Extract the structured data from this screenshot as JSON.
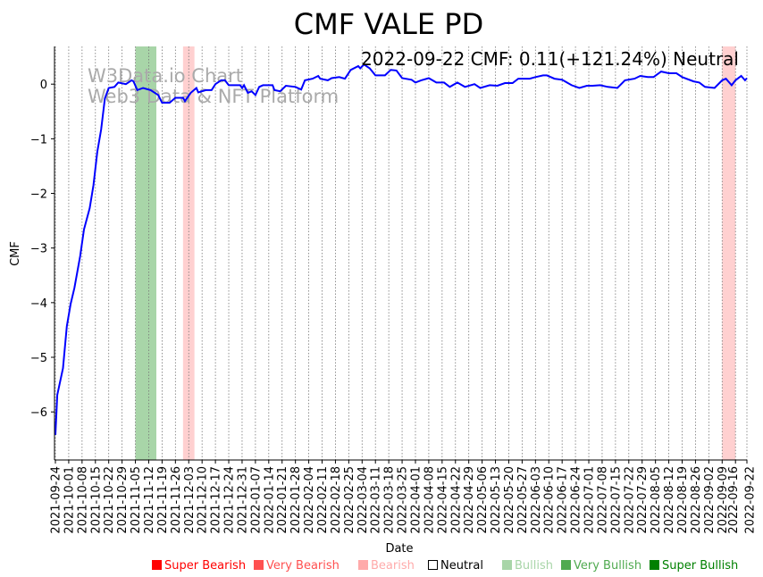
{
  "chart_data": {
    "type": "line",
    "title": "CMF VALE PD",
    "annotation": "2022-09-22 CMF: 0.11(+121.24%) Neutral",
    "watermark": [
      "W3Data.io Chart",
      "Web3 Data & NFT Platform"
    ],
    "xlabel": "Date",
    "ylabel": "CMF",
    "x_unit": "days since 2021-09-24",
    "xlim": [
      0,
      363
    ],
    "ylim": [
      -6.88,
      0.69
    ],
    "yticks": [
      0,
      -1,
      -2,
      -3,
      -4,
      -5,
      -6
    ],
    "xticks": [
      {
        "day": 0,
        "label": "2021-09-24"
      },
      {
        "day": 7,
        "label": "2021-10-01"
      },
      {
        "day": 14,
        "label": "2021-10-08"
      },
      {
        "day": 21,
        "label": "2021-10-15"
      },
      {
        "day": 28,
        "label": "2021-10-22"
      },
      {
        "day": 35,
        "label": "2021-10-29"
      },
      {
        "day": 42,
        "label": "2021-11-05"
      },
      {
        "day": 49,
        "label": "2021-11-12"
      },
      {
        "day": 56,
        "label": "2021-11-19"
      },
      {
        "day": 63,
        "label": "2021-11-26"
      },
      {
        "day": 70,
        "label": "2021-12-03"
      },
      {
        "day": 77,
        "label": "2021-12-10"
      },
      {
        "day": 84,
        "label": "2021-12-17"
      },
      {
        "day": 91,
        "label": "2021-12-24"
      },
      {
        "day": 98,
        "label": "2021-12-31"
      },
      {
        "day": 105,
        "label": "2022-01-07"
      },
      {
        "day": 112,
        "label": "2022-01-14"
      },
      {
        "day": 119,
        "label": "2022-01-21"
      },
      {
        "day": 126,
        "label": "2022-01-28"
      },
      {
        "day": 133,
        "label": "2022-02-04"
      },
      {
        "day": 140,
        "label": "2022-02-11"
      },
      {
        "day": 147,
        "label": "2022-02-18"
      },
      {
        "day": 154,
        "label": "2022-02-25"
      },
      {
        "day": 161,
        "label": "2022-03-04"
      },
      {
        "day": 168,
        "label": "2022-03-11"
      },
      {
        "day": 175,
        "label": "2022-03-18"
      },
      {
        "day": 182,
        "label": "2022-03-25"
      },
      {
        "day": 189,
        "label": "2022-04-01"
      },
      {
        "day": 196,
        "label": "2022-04-08"
      },
      {
        "day": 203,
        "label": "2022-04-15"
      },
      {
        "day": 210,
        "label": "2022-04-22"
      },
      {
        "day": 217,
        "label": "2022-04-29"
      },
      {
        "day": 224,
        "label": "2022-05-06"
      },
      {
        "day": 231,
        "label": "2022-05-13"
      },
      {
        "day": 238,
        "label": "2022-05-20"
      },
      {
        "day": 245,
        "label": "2022-05-27"
      },
      {
        "day": 252,
        "label": "2022-06-03"
      },
      {
        "day": 259,
        "label": "2022-06-10"
      },
      {
        "day": 266,
        "label": "2022-06-17"
      },
      {
        "day": 273,
        "label": "2022-06-24"
      },
      {
        "day": 280,
        "label": "2022-07-01"
      },
      {
        "day": 287,
        "label": "2022-07-08"
      },
      {
        "day": 294,
        "label": "2022-07-15"
      },
      {
        "day": 301,
        "label": "2022-07-22"
      },
      {
        "day": 308,
        "label": "2022-07-29"
      },
      {
        "day": 315,
        "label": "2022-08-05"
      },
      {
        "day": 322,
        "label": "2022-08-12"
      },
      {
        "day": 329,
        "label": "2022-08-19"
      },
      {
        "day": 336,
        "label": "2022-08-26"
      },
      {
        "day": 343,
        "label": "2022-09-02"
      },
      {
        "day": 350,
        "label": "2022-09-09"
      },
      {
        "day": 357,
        "label": "2022-09-16"
      },
      {
        "day": 363,
        "label": "2022-09-22"
      }
    ],
    "grid": "vertical dotted",
    "regions": [
      {
        "start": 42,
        "end": 53,
        "category": "Bullish",
        "color": "#a8d5a8"
      },
      {
        "start": 67,
        "end": 73,
        "category": "Bearish",
        "color": "#ffd0d0"
      },
      {
        "start": 350,
        "end": 357,
        "category": "Bearish",
        "color": "#ffd0d0"
      }
    ],
    "series": [
      {
        "name": "CMF",
        "color": "#0000ff",
        "points": [
          [
            0,
            -6.42
          ],
          [
            1,
            -5.69
          ],
          [
            4,
            -5.2
          ],
          [
            6,
            -4.43
          ],
          [
            8,
            -4.02
          ],
          [
            10,
            -3.73
          ],
          [
            13,
            -3.15
          ],
          [
            15,
            -2.66
          ],
          [
            18,
            -2.27
          ],
          [
            20,
            -1.85
          ],
          [
            22,
            -1.24
          ],
          [
            24,
            -0.83
          ],
          [
            26,
            -0.26
          ],
          [
            28,
            -0.07
          ],
          [
            31,
            -0.05
          ],
          [
            33,
            0.03
          ],
          [
            37,
            0.0
          ],
          [
            40,
            0.07
          ],
          [
            41,
            0.05
          ],
          [
            43,
            -0.11
          ],
          [
            46,
            -0.07
          ],
          [
            50,
            -0.11
          ],
          [
            54,
            -0.2
          ],
          [
            56,
            -0.34
          ],
          [
            60,
            -0.34
          ],
          [
            63,
            -0.25
          ],
          [
            67,
            -0.25
          ],
          [
            68,
            -0.31
          ],
          [
            71,
            -0.16
          ],
          [
            74,
            -0.07
          ],
          [
            75,
            -0.15
          ],
          [
            79,
            -0.11
          ],
          [
            82,
            -0.11
          ],
          [
            84,
            0.0
          ],
          [
            87,
            0.07
          ],
          [
            89,
            0.07
          ],
          [
            91,
            -0.02
          ],
          [
            97,
            -0.02
          ],
          [
            98,
            -0.07
          ],
          [
            99,
            -0.02
          ],
          [
            101,
            -0.16
          ],
          [
            103,
            -0.13
          ],
          [
            105,
            -0.2
          ],
          [
            107,
            -0.05
          ],
          [
            109,
            -0.02
          ],
          [
            114,
            -0.02
          ],
          [
            115,
            -0.11
          ],
          [
            118,
            -0.13
          ],
          [
            121,
            -0.03
          ],
          [
            126,
            -0.05
          ],
          [
            129,
            -0.1
          ],
          [
            131,
            0.07
          ],
          [
            135,
            0.1
          ],
          [
            138,
            0.15
          ],
          [
            139,
            0.1
          ],
          [
            143,
            0.07
          ],
          [
            145,
            0.11
          ],
          [
            149,
            0.13
          ],
          [
            152,
            0.1
          ],
          [
            155,
            0.26
          ],
          [
            159,
            0.33
          ],
          [
            160,
            0.29
          ],
          [
            162,
            0.36
          ],
          [
            165,
            0.29
          ],
          [
            168,
            0.16
          ],
          [
            173,
            0.16
          ],
          [
            176,
            0.26
          ],
          [
            179,
            0.25
          ],
          [
            182,
            0.11
          ],
          [
            187,
            0.08
          ],
          [
            189,
            0.03
          ],
          [
            192,
            0.07
          ],
          [
            196,
            0.11
          ],
          [
            200,
            0.03
          ],
          [
            204,
            0.03
          ],
          [
            207,
            -0.05
          ],
          [
            211,
            0.03
          ],
          [
            215,
            -0.05
          ],
          [
            220,
            0.0
          ],
          [
            223,
            -0.07
          ],
          [
            228,
            -0.02
          ],
          [
            232,
            -0.03
          ],
          [
            236,
            0.02
          ],
          [
            240,
            0.02
          ],
          [
            243,
            0.1
          ],
          [
            249,
            0.1
          ],
          [
            252,
            0.13
          ],
          [
            256,
            0.16
          ],
          [
            258,
            0.16
          ],
          [
            262,
            0.1
          ],
          [
            266,
            0.08
          ],
          [
            271,
            -0.02
          ],
          [
            275,
            -0.07
          ],
          [
            279,
            -0.03
          ],
          [
            282,
            -0.03
          ],
          [
            286,
            -0.02
          ],
          [
            290,
            -0.05
          ],
          [
            295,
            -0.07
          ],
          [
            299,
            0.07
          ],
          [
            304,
            0.1
          ],
          [
            307,
            0.15
          ],
          [
            311,
            0.13
          ],
          [
            314,
            0.13
          ],
          [
            318,
            0.23
          ],
          [
            322,
            0.2
          ],
          [
            326,
            0.2
          ],
          [
            329,
            0.13
          ],
          [
            335,
            0.05
          ],
          [
            338,
            0.03
          ],
          [
            341,
            -0.05
          ],
          [
            346,
            -0.07
          ],
          [
            350,
            0.07
          ],
          [
            352,
            0.1
          ],
          [
            355,
            -0.02
          ],
          [
            357,
            0.07
          ],
          [
            360,
            0.15
          ],
          [
            362,
            0.07
          ],
          [
            363,
            0.11
          ]
        ]
      }
    ],
    "legend": {
      "placement": "bottom",
      "items": [
        {
          "label": "Super Bearish",
          "color": "#ff0000"
        },
        {
          "label": "Very Bearish",
          "color": "#ff5050"
        },
        {
          "label": "Bearish",
          "color": "#ffaaaa"
        },
        {
          "label": "Neutral",
          "color": "#ffffff"
        },
        {
          "label": "Bullish",
          "color": "#a8d5a8"
        },
        {
          "label": "Very Bullish",
          "color": "#50aa50"
        },
        {
          "label": "Super Bullish",
          "color": "#008000"
        }
      ]
    }
  }
}
